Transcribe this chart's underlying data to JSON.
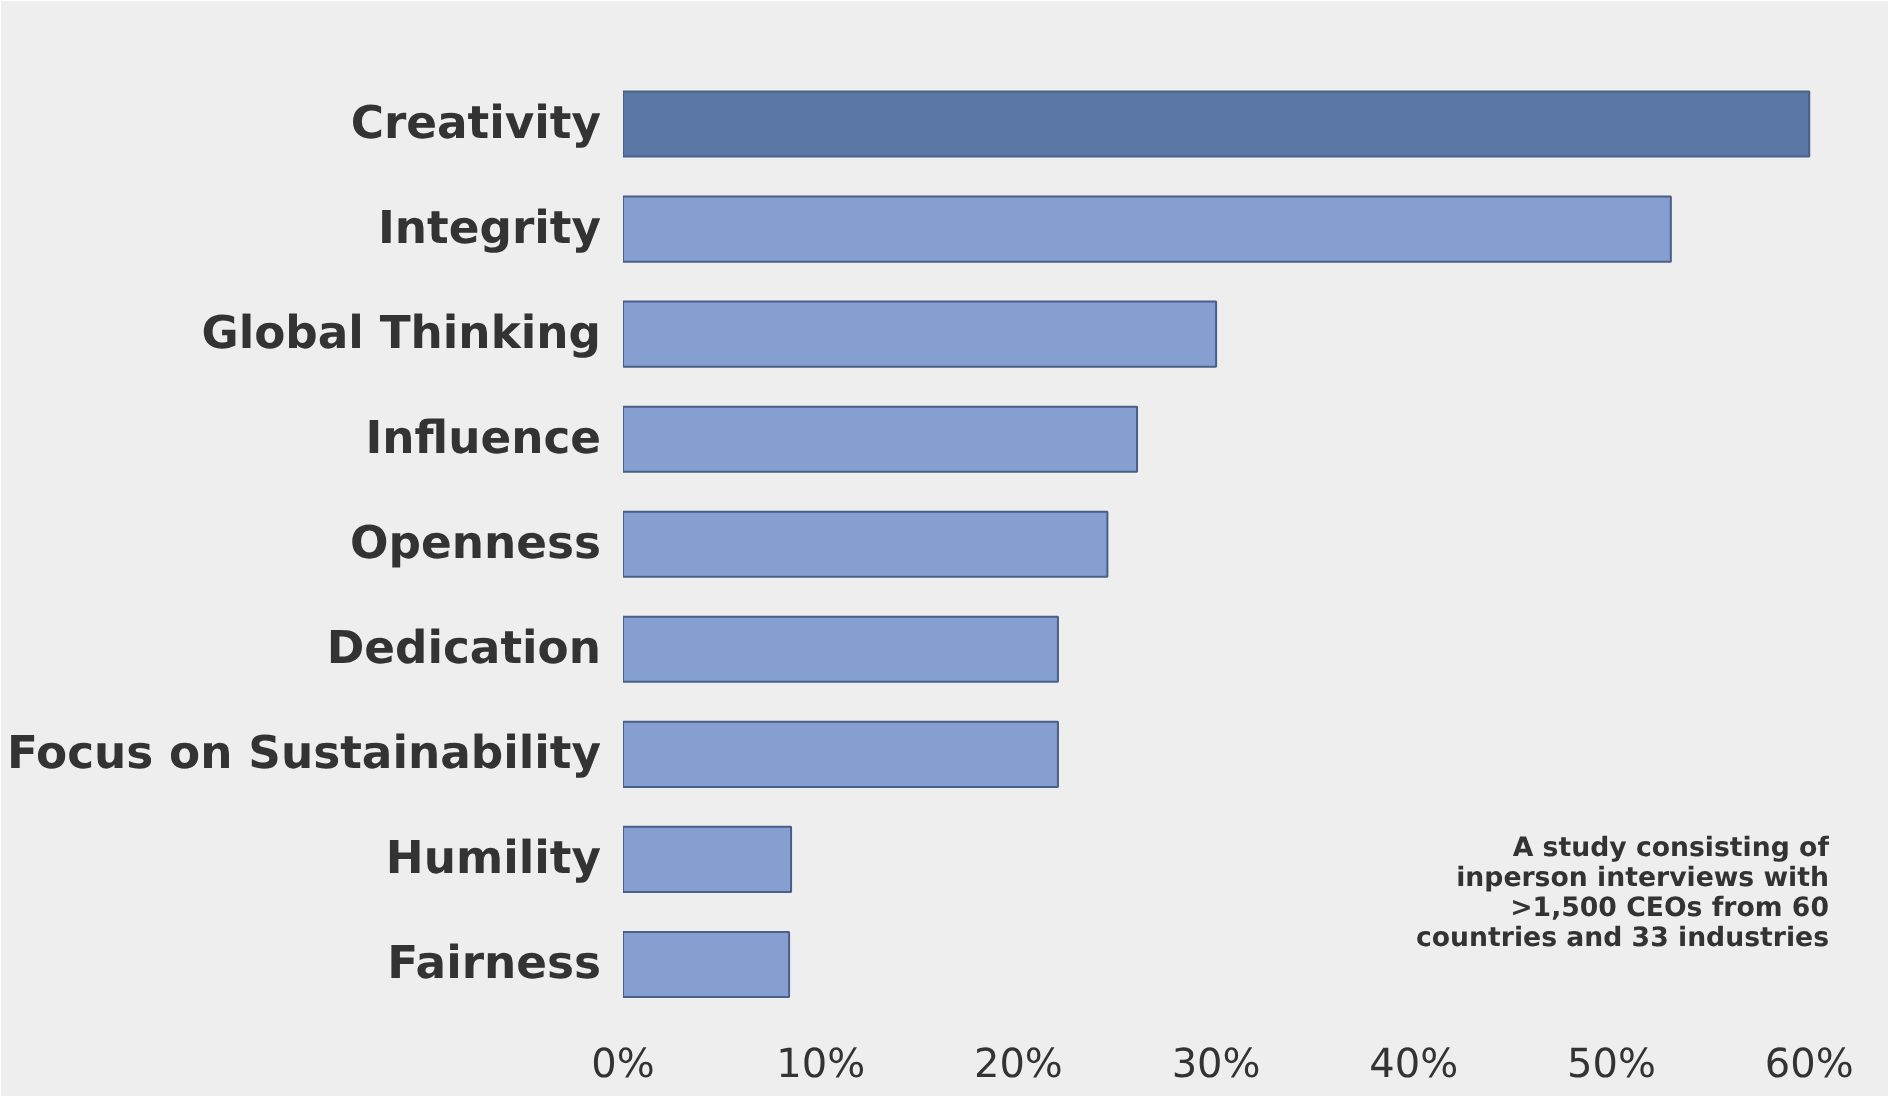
{
  "chart_data": {
    "type": "bar",
    "orientation": "horizontal",
    "categories": [
      "Creativity",
      "Integrity",
      "Global Thinking",
      "Influence",
      "Openness",
      "Dedication",
      "Focus on Sustainability",
      "Humility",
      "Fairness"
    ],
    "values": [
      60,
      53,
      30,
      26,
      24.5,
      22,
      22,
      8.5,
      8.4
    ],
    "colors": [
      "#5b77a6",
      "#859fd0",
      "#859fd0",
      "#859fd0",
      "#859fd0",
      "#859fd0",
      "#859fd0",
      "#859fd0",
      "#859fd0"
    ],
    "xlim": [
      0,
      61
    ],
    "xticks": [
      {
        "value": 0,
        "label": "0%"
      },
      {
        "value": 10,
        "label": "10%"
      },
      {
        "value": 20,
        "label": "20%"
      },
      {
        "value": 30,
        "label": "30%"
      },
      {
        "value": 40,
        "label": "40%"
      },
      {
        "value": 50,
        "label": "50%"
      },
      {
        "value": 60,
        "label": "60%"
      }
    ],
    "annotations": [
      "A study consisting of\ninperson interviews with\n>1,500 CEOs from 60\ncountries and 33 industries"
    ],
    "grid": false
  }
}
